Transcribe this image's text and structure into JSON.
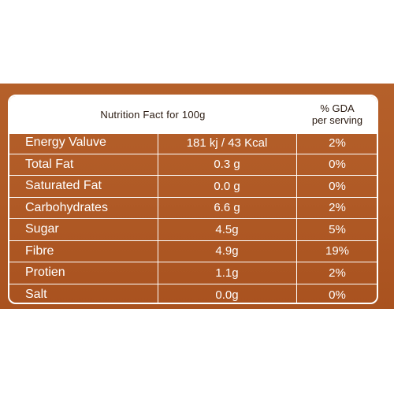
{
  "header": {
    "title": "Nutrition Fact for 100g",
    "gda_line1": "% GDA",
    "gda_line2": "per serving"
  },
  "rows": [
    {
      "name": "Energy Valuve",
      "value": "181 kj / 43 Kcal",
      "gda": "2%"
    },
    {
      "name": "Total Fat",
      "value": "0.3 g",
      "gda": "0%"
    },
    {
      "name": "Saturated Fat",
      "value": "0.0 g",
      "gda": "0%"
    },
    {
      "name": "Carbohydrates",
      "value": "6.6 g",
      "gda": "2%"
    },
    {
      "name": "Sugar",
      "value": "4.5g",
      "gda": "5%"
    },
    {
      "name": "Fibre",
      "value": "4.9g",
      "gda": "19%"
    },
    {
      "name": "Protien",
      "value": "1.1g",
      "gda": "2%"
    },
    {
      "name": "Salt",
      "value": "0.0g",
      "gda": "0%"
    }
  ],
  "colors": {
    "panel": "#b05a26",
    "header_bg": "#ffffff",
    "text_light": "#ffffff",
    "text_dark": "#2a1a10"
  }
}
